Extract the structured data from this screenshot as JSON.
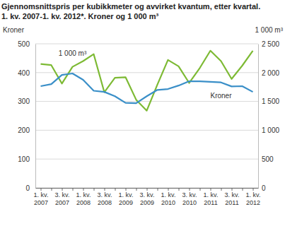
{
  "chart_data": {
    "type": "line",
    "title": [
      "Gjennomsnittspris per kubikkmeter og avvirket kvantum, etter kvartal.",
      "1. kv. 2007-1. kv. 2012*. Kroner og 1 000 m³"
    ],
    "y_label": "Kroner",
    "y2_label": "1 000 m³",
    "categories": [
      "1. kv. 2007",
      null,
      "3. kv. 2007",
      null,
      "1. kv. 2008",
      null,
      "3. kv. 2008",
      null,
      "1. kv. 2009",
      null,
      "3. kv. 2009",
      null,
      "1. kv. 2010",
      null,
      "3. kv. 2010",
      null,
      "1. kv. 2011",
      null,
      "3. kv. 2011",
      null,
      "1. kv. 2012"
    ],
    "series": [
      {
        "name": "Kroner",
        "color": "#3a8fc8",
        "values": [
          353,
          360,
          392,
          397,
          375,
          337,
          333,
          318,
          295,
          294,
          318,
          340,
          343,
          355,
          370,
          370,
          368,
          366,
          352,
          353,
          333
        ]
      },
      {
        "name": "1 000 m³",
        "color": "#7dba34",
        "axis": "y2",
        "values": [
          2150,
          2130,
          1810,
          2100,
          2200,
          2320,
          1660,
          1910,
          1920,
          1530,
          1340,
          1790,
          2220,
          2110,
          1820,
          2080,
          2380,
          2200,
          1890,
          2120,
          2380
        ]
      }
    ],
    "ylim": [
      0,
      500
    ],
    "yticks": [
      0,
      100,
      200,
      300,
      400,
      500
    ],
    "y2lim": [
      0,
      2500
    ],
    "y2ticks": [
      0,
      500,
      {
        "value": 1000,
        "label": "1 000"
      },
      {
        "value": 1500,
        "label": "1 500"
      },
      {
        "value": 2000,
        "label": "2 000"
      },
      {
        "value": 2500,
        "label": "2 500"
      }
    ],
    "grid": true
  }
}
